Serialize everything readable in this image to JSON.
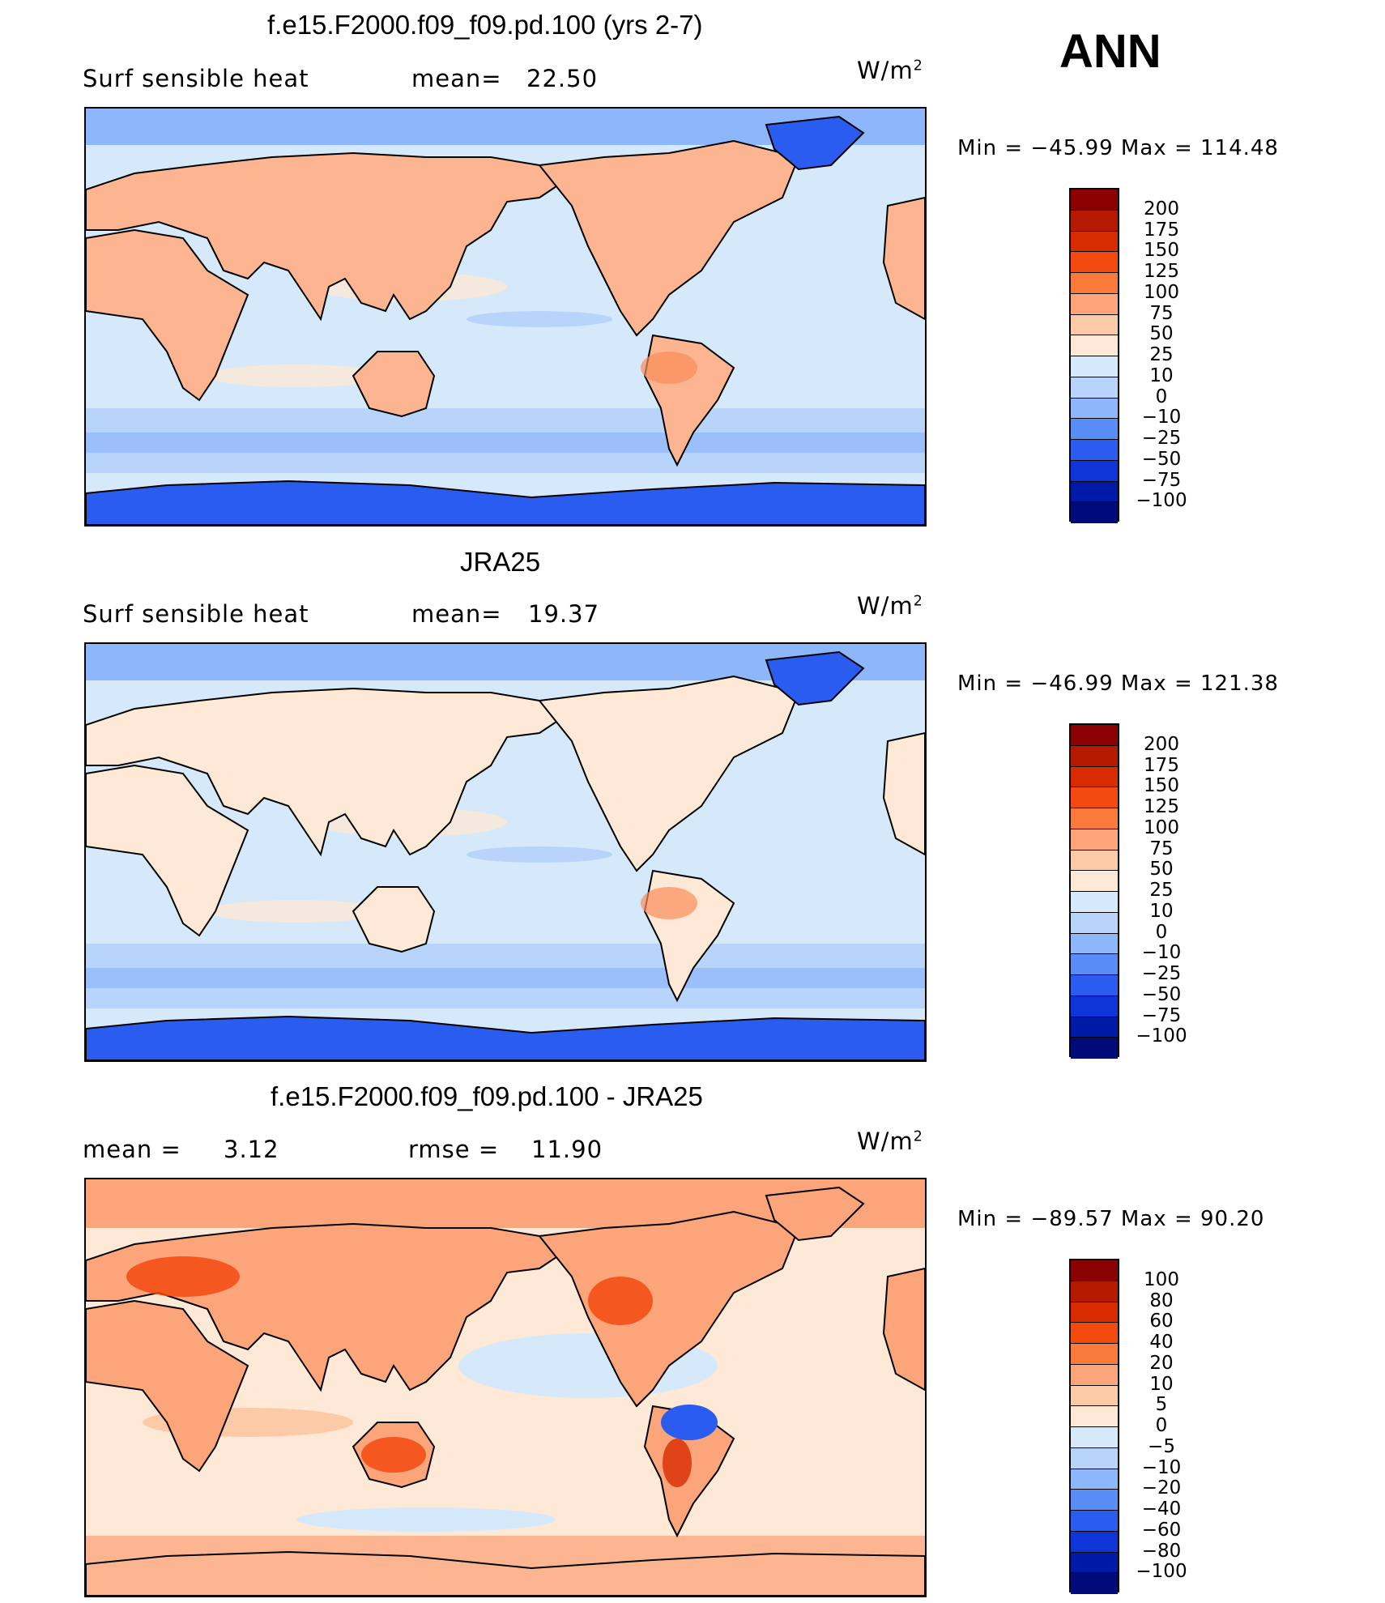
{
  "header": {
    "season": "ANN"
  },
  "units_main": "W/m",
  "units_sup": "2",
  "panels": [
    {
      "title": "f.e15.F2000.f09_f09.pd.100 (yrs 2-7)",
      "left_label": "Surf  sensible  heat",
      "stat_label": "mean=",
      "stat_value": "22.50",
      "minmax": "Min  =  −45.99  Max  =  114.48",
      "colorbar": {
        "labels": [
          "200",
          "175",
          "150",
          "125",
          "100",
          "75",
          "50",
          "25",
          "10",
          "0",
          "−10",
          "−25",
          "−50",
          "−75",
          "−100"
        ],
        "colors": [
          "#8b0000",
          "#b51a00",
          "#d92b00",
          "#f24a0f",
          "#fa7a3c",
          "#fca47a",
          "#fdcaa8",
          "#fde9d6",
          "#d6e9fb",
          "#b8d4fb",
          "#8eb6fa",
          "#5a8cf5",
          "#2a5cf0",
          "#0f35d8",
          "#001aa8",
          "#000a78"
        ]
      },
      "map_style": "sim"
    },
    {
      "title": "JRA25",
      "left_label": "Surf  sensible  heat",
      "stat_label": "mean=",
      "stat_value": "19.37",
      "minmax": "Min  =  −46.99  Max  =  121.38",
      "colorbar": {
        "labels": [
          "200",
          "175",
          "150",
          "125",
          "100",
          "75",
          "50",
          "25",
          "10",
          "0",
          "−10",
          "−25",
          "−50",
          "−75",
          "−100"
        ],
        "colors": [
          "#8b0000",
          "#b51a00",
          "#d92b00",
          "#f24a0f",
          "#fa7a3c",
          "#fca47a",
          "#fdcaa8",
          "#fde9d6",
          "#d6e9fb",
          "#b8d4fb",
          "#8eb6fa",
          "#5a8cf5",
          "#2a5cf0",
          "#0f35d8",
          "#001aa8",
          "#000a78"
        ]
      },
      "map_style": "obs"
    },
    {
      "title": "f.e15.F2000.f09_f09.pd.100 - JRA25",
      "left_label": "mean  =",
      "left_value": "3.12",
      "stat_label": "rmse  =",
      "stat_value": "11.90",
      "minmax": "Min  =  −89.57  Max  =   90.20",
      "colorbar": {
        "labels": [
          "100",
          "80",
          "60",
          "40",
          "20",
          "10",
          "5",
          "0",
          "−5",
          "−10",
          "−20",
          "−40",
          "−60",
          "−80",
          "−100"
        ],
        "colors": [
          "#8b0000",
          "#b51a00",
          "#d92b00",
          "#f24a0f",
          "#fa7a3c",
          "#fca47a",
          "#fdcaa8",
          "#fde9d6",
          "#d6e9fb",
          "#b8d4fb",
          "#8eb6fa",
          "#5a8cf5",
          "#2a5cf0",
          "#0f35d8",
          "#001aa8",
          "#000a78"
        ]
      },
      "map_style": "diff"
    }
  ]
}
